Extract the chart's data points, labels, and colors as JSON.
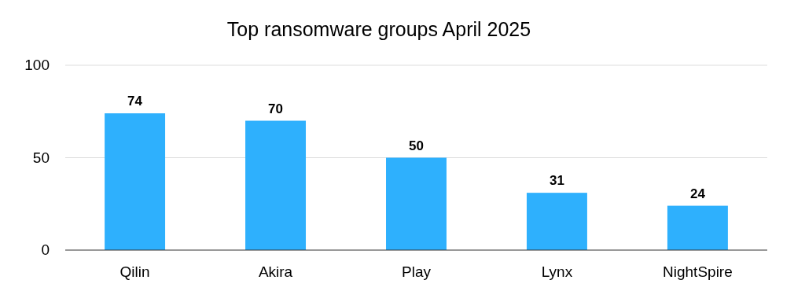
{
  "chart_data": {
    "type": "bar",
    "title": "Top ransomware groups April 2025",
    "categories": [
      "Qilin",
      "Akira",
      "Play",
      "Lynx",
      "NightSpire"
    ],
    "values": [
      74,
      70,
      50,
      31,
      24
    ],
    "color": "#2eb0fd",
    "ylim": [
      0,
      100
    ],
    "yticks": [
      0,
      50,
      100
    ],
    "grid": "y",
    "data_labels": true
  }
}
